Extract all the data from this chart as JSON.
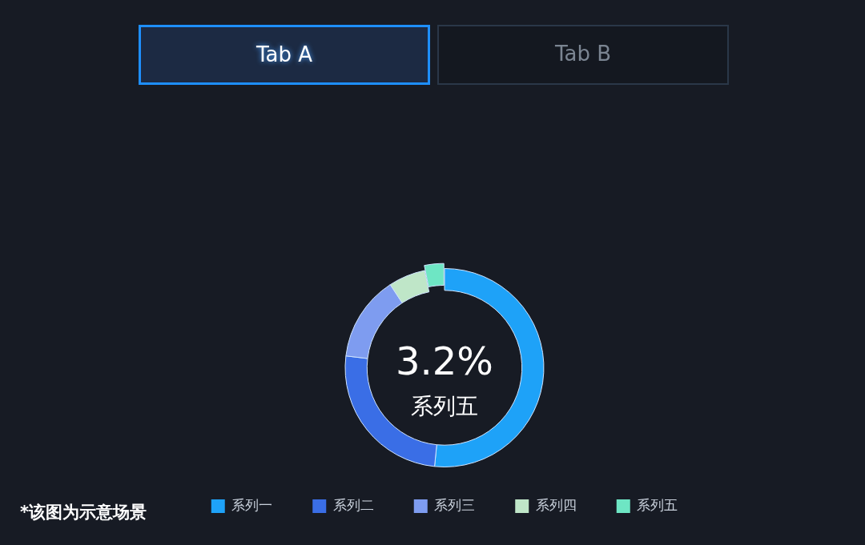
{
  "chart_data": {
    "type": "donut",
    "categories": [
      "系列一",
      "系列二",
      "系列三",
      "系列四",
      "系列五"
    ],
    "values": [
      51.6,
      25.3,
      13.9,
      6.0,
      3.2
    ],
    "colors": [
      "#1ea2f8",
      "#3a6ee6",
      "#7e9cf0",
      "#bfe6c8",
      "#6ee6c4"
    ],
    "value_labels": [
      null,
      null,
      null,
      null,
      "3.2%"
    ],
    "legend": "bottom",
    "annotations": [
      "Tab A",
      "Tab B",
      "*该图为示意场景"
    ]
  }
}
